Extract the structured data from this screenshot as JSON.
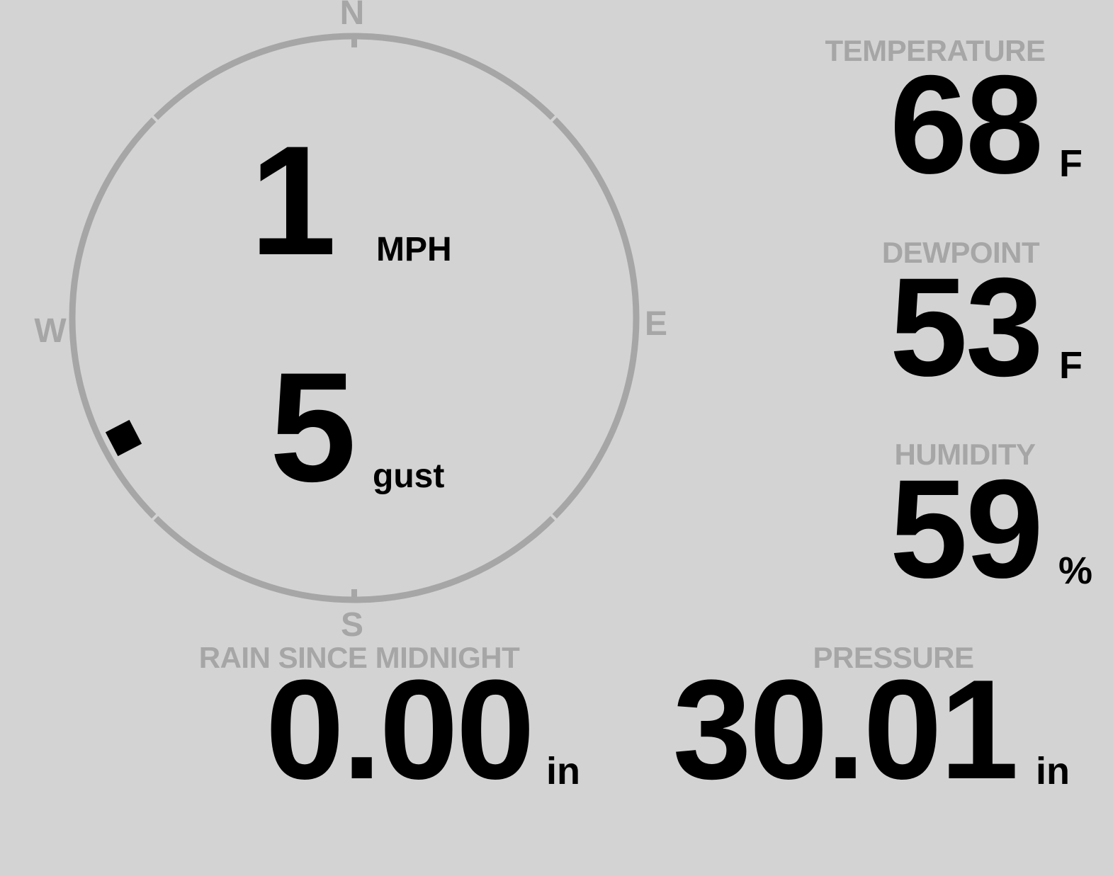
{
  "colors": {
    "background": "#d3d3d3",
    "muted": "#a6a6a6",
    "ink": "#000000"
  },
  "wind": {
    "speed_value": "1",
    "speed_unit": "MPH",
    "gust_value": "5",
    "gust_unit": "gust",
    "direction_deg": 242.5,
    "compass_labels": {
      "n": "N",
      "e": "E",
      "s": "S",
      "w": "W"
    }
  },
  "temperature": {
    "label": "TEMPERATURE",
    "value": "68",
    "unit": "F"
  },
  "dewpoint": {
    "label": "DEWPOINT",
    "value": "53",
    "unit": "F"
  },
  "humidity": {
    "label": "HUMIDITY",
    "value": "59",
    "unit": "%"
  },
  "rain": {
    "label": "RAIN SINCE MIDNIGHT",
    "value": "0.00",
    "unit": "in"
  },
  "pressure": {
    "label": "PRESSURE",
    "value": "30.01",
    "unit": "in"
  }
}
